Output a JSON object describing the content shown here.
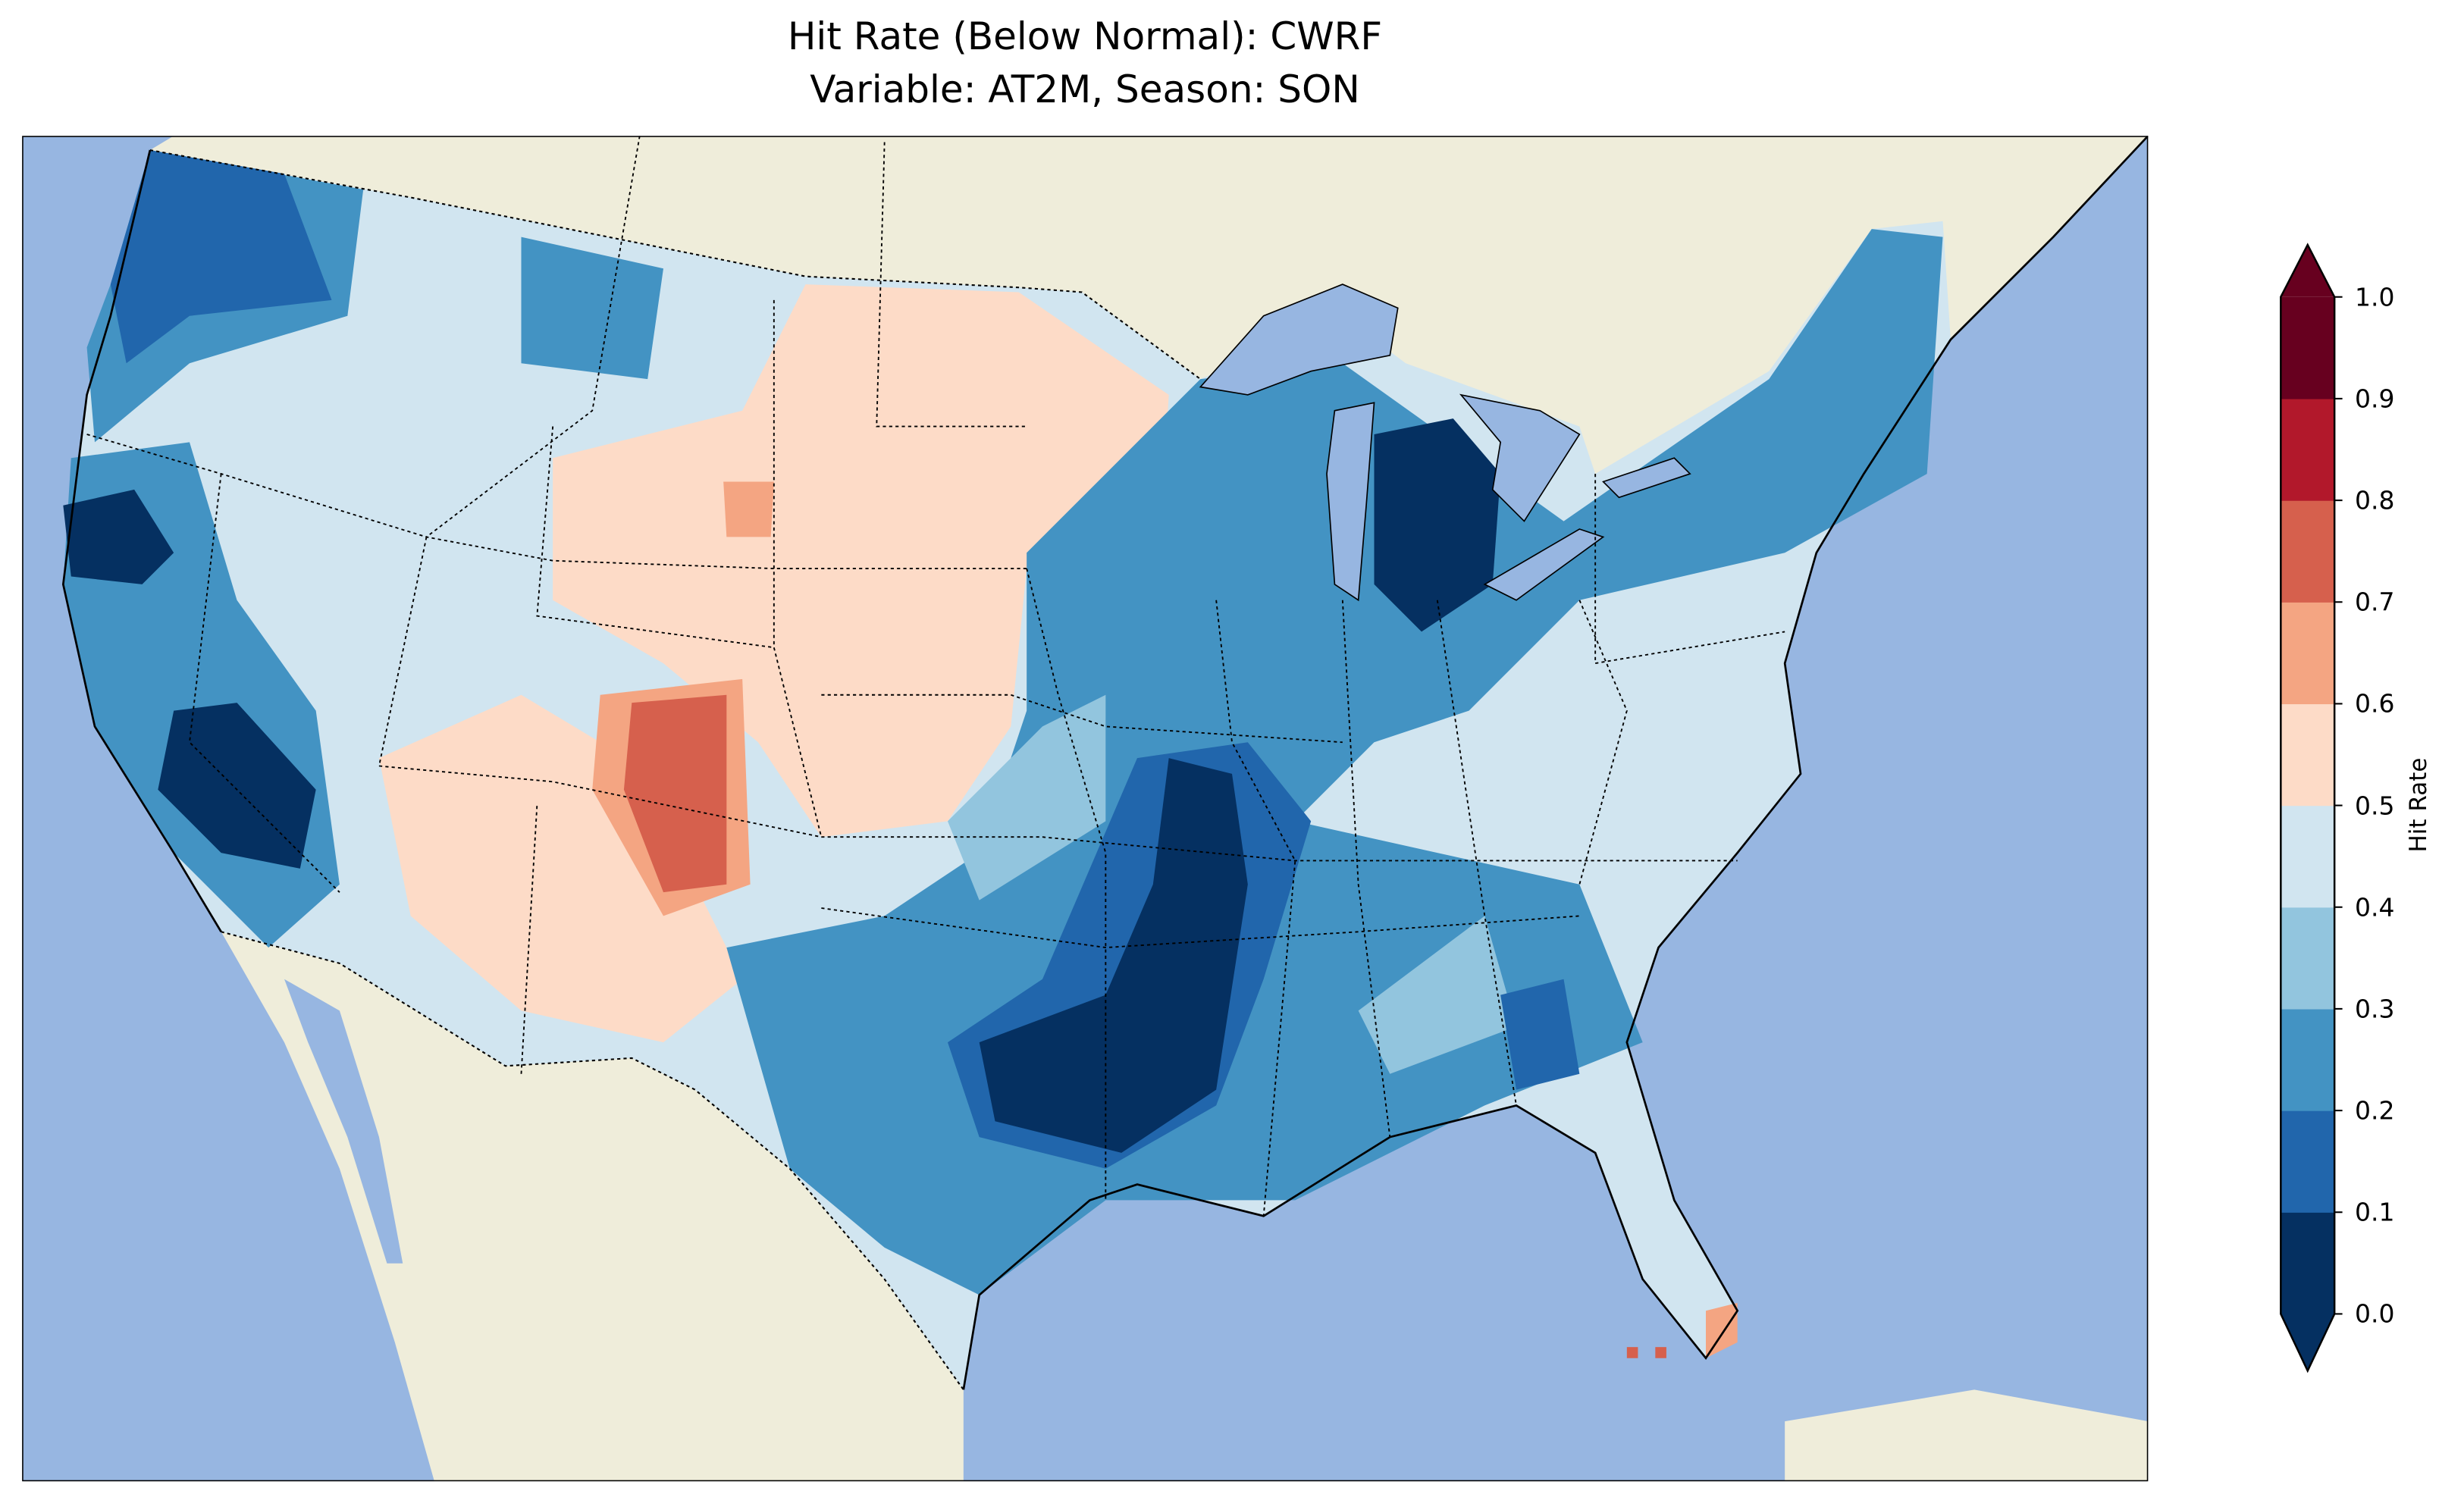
{
  "chart_data": {
    "type": "heatmap",
    "title": "Hit Rate (Below Normal): CWRF",
    "subtitle": "Variable: AT2M, Season: SON",
    "colorbar": {
      "label": "Hit Rate",
      "ticks": [
        "0.0",
        "0.1",
        "0.2",
        "0.3",
        "0.4",
        "0.5",
        "0.6",
        "0.7",
        "0.8",
        "0.9",
        "1.0"
      ],
      "range": [
        0,
        1
      ],
      "extend": "both",
      "colors": [
        "#053061",
        "#2166ac",
        "#4393c3",
        "#92c5de",
        "#d1e5f0",
        "#fddbc7",
        "#f4a582",
        "#d6604d",
        "#b2182b",
        "#67001f"
      ]
    },
    "regions_summary": [
      {
        "region": "Michigan",
        "value_range": "0.0-0.1"
      },
      {
        "region": "Central California",
        "value_range": "0.0-0.1"
      },
      {
        "region": "Arkansas / East Texas / Oklahoma",
        "value_range": "0.0-0.1"
      },
      {
        "region": "Colorado",
        "value_range": "0.7-0.8"
      },
      {
        "region": "Northern Plains",
        "value_range": "0.5-0.6"
      },
      {
        "region": "Great Basin",
        "value_range": "0.4-0.5"
      },
      {
        "region": "South Florida",
        "value_range": "0.6-0.7"
      }
    ]
  },
  "colors": {
    "ocean": "#97b6e1",
    "land": "#efedda"
  }
}
